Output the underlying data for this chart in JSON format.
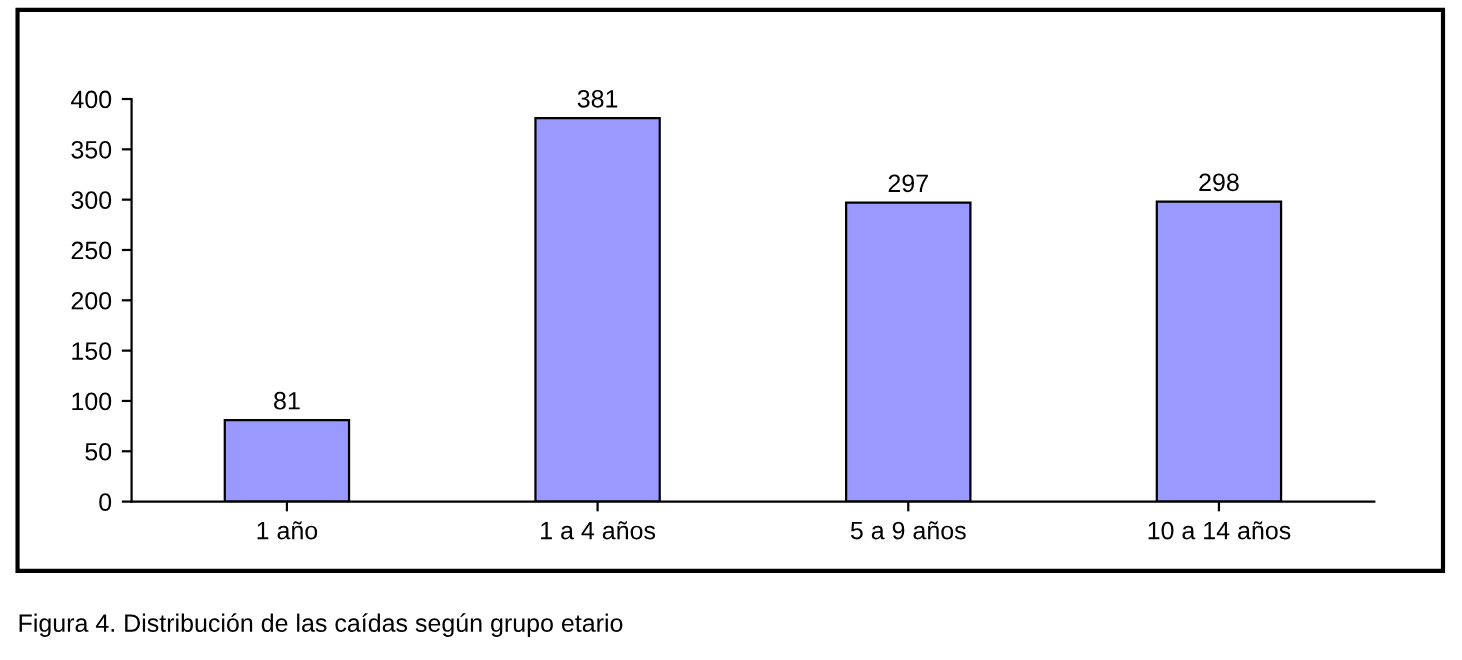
{
  "chart_data": {
    "type": "bar",
    "categories": [
      "1 año",
      "1 a 4 años",
      "5 a 9 años",
      "10 a 14 años"
    ],
    "values": [
      81,
      381,
      297,
      298
    ],
    "color": "#9999ff",
    "ylim": [
      0,
      400
    ],
    "yticks": [
      0,
      50,
      100,
      150,
      200,
      250,
      300,
      350,
      400
    ],
    "data_labels": true,
    "annotations": [
      "Figura 4. Distribución de las caídas según grupo etario"
    ]
  }
}
